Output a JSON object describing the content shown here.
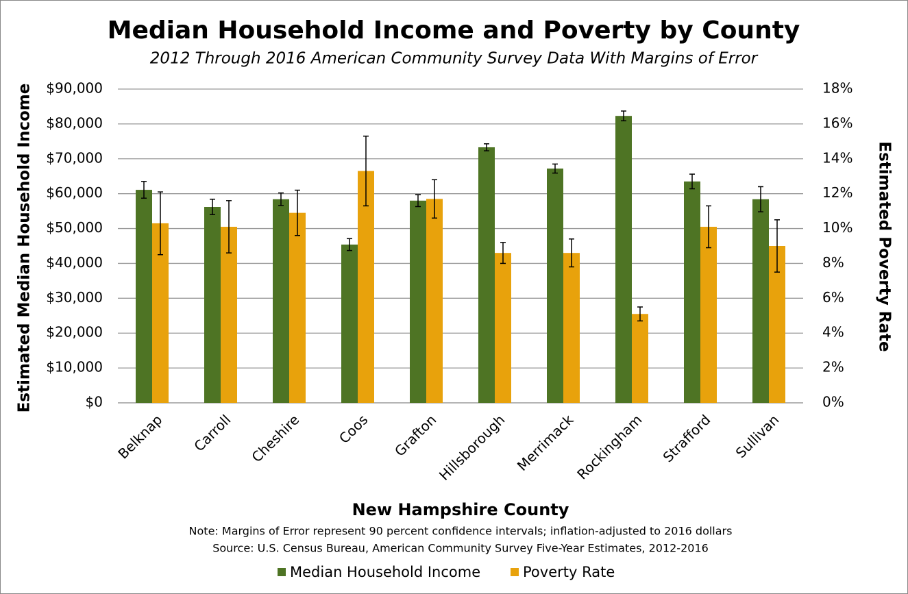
{
  "chart_data": {
    "type": "bar",
    "title": "Median Household Income and Poverty by County",
    "subtitle": "2012 Through 2016 American Community Survey Data With Margins of Error",
    "x_label": "New Hampshire County",
    "y_label": "Estimated Median Household Income",
    "y2_label": "Estimated Poverty Rate",
    "notes": [
      "Note: Margins of Error represent 90 percent confidence intervals; inflation-adjusted to 2016 dollars",
      "Source: U.S. Census Bureau, American Community Survey Five-Year Estimates, 2012-2016"
    ],
    "categories": [
      "Belknap",
      "Carroll",
      "Cheshire",
      "Coos",
      "Grafton",
      "Hillsborough",
      "Merrimack",
      "Rockingham",
      "Strafford",
      "Sullivan"
    ],
    "series": [
      {
        "name": "Median Household Income",
        "color": "#4e7424",
        "axis": "y",
        "values": [
          61100,
          56200,
          58400,
          45400,
          58000,
          73300,
          67200,
          82300,
          63500,
          58400
        ],
        "errors": [
          2400,
          2200,
          1800,
          1700,
          1700,
          1000,
          1300,
          1400,
          2100,
          3600
        ]
      },
      {
        "name": "Poverty Rate",
        "color": "#e8a20c",
        "axis": "y2",
        "values": [
          10.3,
          10.1,
          10.9,
          13.3,
          11.7,
          8.6,
          8.6,
          5.1,
          10.1,
          9.0
        ],
        "errors": [
          1.8,
          1.5,
          1.3,
          2.0,
          1.1,
          0.6,
          0.8,
          0.4,
          1.2,
          1.5
        ]
      }
    ],
    "ylim": [
      0,
      90000
    ],
    "yticks": [
      {
        "value": 0,
        "label": "$0"
      },
      {
        "value": 10000,
        "label": "$10,000"
      },
      {
        "value": 20000,
        "label": "$20,000"
      },
      {
        "value": 30000,
        "label": "$30,000"
      },
      {
        "value": 40000,
        "label": "$40,000"
      },
      {
        "value": 50000,
        "label": "$50,000"
      },
      {
        "value": 60000,
        "label": "$60,000"
      },
      {
        "value": 70000,
        "label": "$70,000"
      },
      {
        "value": 80000,
        "label": "$80,000"
      },
      {
        "value": 90000,
        "label": "$90,000"
      }
    ],
    "y2lim": [
      0,
      18
    ],
    "y2ticks": [
      {
        "value": 0,
        "label": "0%"
      },
      {
        "value": 2,
        "label": "2%"
      },
      {
        "value": 4,
        "label": "4%"
      },
      {
        "value": 6,
        "label": "6%"
      },
      {
        "value": 8,
        "label": "8%"
      },
      {
        "value": 10,
        "label": "10%"
      },
      {
        "value": 12,
        "label": "12%"
      },
      {
        "value": 14,
        "label": "14%"
      },
      {
        "value": 16,
        "label": "16%"
      },
      {
        "value": 18,
        "label": "18%"
      }
    ],
    "grid": true,
    "legend": "bottom"
  }
}
